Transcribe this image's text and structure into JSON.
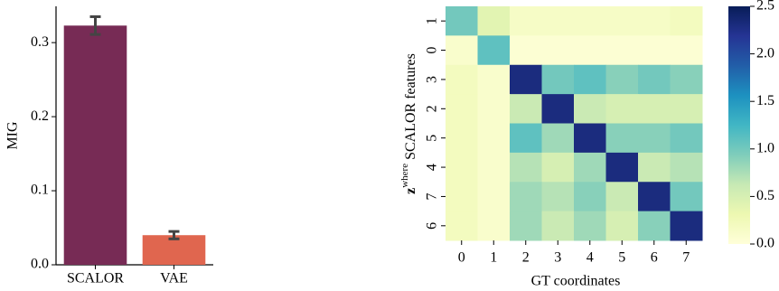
{
  "chart_data": [
    {
      "type": "bar",
      "ylabel": "MIG",
      "categories": [
        "SCALOR",
        "VAE"
      ],
      "values": [
        0.323,
        0.04
      ],
      "errors": [
        0.012,
        0.005
      ],
      "colors": [
        "#772b55",
        "#e0664f"
      ],
      "error_color": "#444444",
      "ylim": [
        0,
        0.349
      ],
      "yticks": [
        {
          "value": 0,
          "label": "0.0"
        },
        0.1,
        0.2,
        0.3
      ]
    },
    {
      "type": "heatmap",
      "xlabel": "GT coordinates",
      "ylabel": {
        "symbol": "z",
        "superscript": "where",
        "text": "SCALOR features"
      },
      "x": [
        "0",
        "1",
        "2",
        "3",
        "4",
        "5",
        "6",
        "7"
      ],
      "y": [
        "1",
        "0",
        "3",
        "2",
        "5",
        "4",
        "7",
        "6"
      ],
      "values": [
        [
          1.0,
          0.4,
          0.15,
          0.15,
          0.15,
          0.15,
          0.15,
          0.2
        ],
        [
          0.1,
          1.1,
          0.05,
          0.05,
          0.05,
          0.05,
          0.05,
          0.05
        ],
        [
          0.2,
          0.1,
          2.3,
          1.0,
          1.1,
          0.9,
          1.0,
          0.9
        ],
        [
          0.2,
          0.1,
          0.6,
          2.3,
          0.6,
          0.5,
          0.5,
          0.5
        ],
        [
          0.2,
          0.1,
          1.1,
          0.8,
          2.3,
          0.9,
          0.9,
          1.0
        ],
        [
          0.2,
          0.1,
          0.7,
          0.5,
          0.8,
          2.3,
          0.6,
          0.7
        ],
        [
          0.2,
          0.1,
          0.8,
          0.7,
          0.9,
          0.6,
          2.3,
          1.0
        ],
        [
          0.2,
          0.1,
          0.8,
          0.6,
          0.8,
          0.5,
          0.9,
          2.3
        ]
      ],
      "colormap": "YlGnBu",
      "clim": [
        0,
        2.5
      ],
      "cticks": [
        {
          "value": 0,
          "label": "0.0"
        },
        0.5,
        {
          "value": 1,
          "label": "1.0"
        },
        1.5,
        {
          "value": 2,
          "label": "2.0"
        },
        2.5
      ]
    }
  ]
}
